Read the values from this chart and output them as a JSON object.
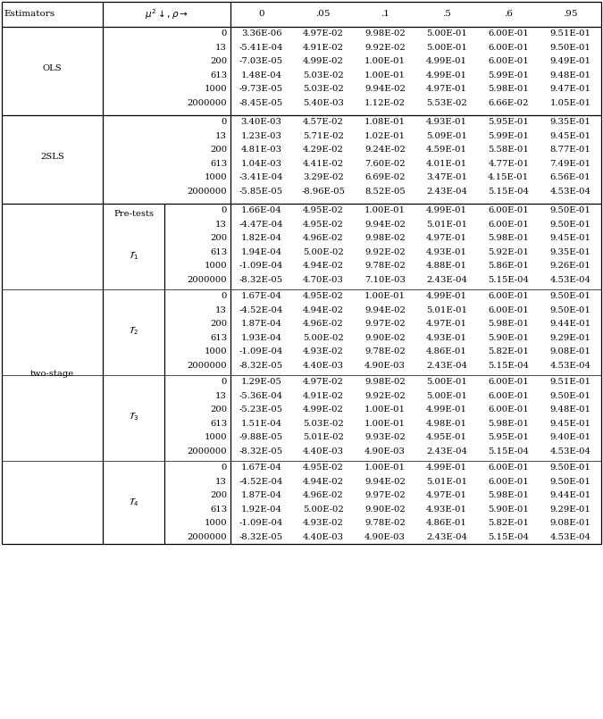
{
  "col_header": [
    "0",
    ".05",
    ".1",
    ".5",
    ".6",
    ".95"
  ],
  "mu2_values": [
    "0",
    "13",
    "200",
    "613",
    "1000",
    "2000000"
  ],
  "sections_order": [
    "OLS",
    "2SLS",
    "two_stage_T1",
    "two_stage_T2",
    "two_stage_T3",
    "two_stage_T4"
  ],
  "sections": {
    "OLS": {
      "main_label": "OLS",
      "sub_label": null,
      "rows": [
        [
          "3.36E-06",
          "4.97E-02",
          "9.98E-02",
          "5.00E-01",
          "6.00E-01",
          "9.51E-01"
        ],
        [
          "-5.41E-04",
          "4.91E-02",
          "9.92E-02",
          "5.00E-01",
          "6.00E-01",
          "9.50E-01"
        ],
        [
          "-7.03E-05",
          "4.99E-02",
          "1.00E-01",
          "4.99E-01",
          "6.00E-01",
          "9.49E-01"
        ],
        [
          "1.48E-04",
          "5.03E-02",
          "1.00E-01",
          "4.99E-01",
          "5.99E-01",
          "9.48E-01"
        ],
        [
          "-9.73E-05",
          "5.03E-02",
          "9.94E-02",
          "4.97E-01",
          "5.98E-01",
          "9.47E-01"
        ],
        [
          "-8.45E-05",
          "5.40E-03",
          "1.12E-02",
          "5.53E-02",
          "6.66E-02",
          "1.05E-01"
        ]
      ]
    },
    "2SLS": {
      "main_label": "2SLS",
      "sub_label": null,
      "rows": [
        [
          "3.40E-03",
          "4.57E-02",
          "1.08E-01",
          "4.93E-01",
          "5.95E-01",
          "9.35E-01"
        ],
        [
          "1.23E-03",
          "5.71E-02",
          "1.02E-01",
          "5.09E-01",
          "5.99E-01",
          "9.45E-01"
        ],
        [
          "4.81E-03",
          "4.29E-02",
          "9.24E-02",
          "4.59E-01",
          "5.58E-01",
          "8.77E-01"
        ],
        [
          "1.04E-03",
          "4.41E-02",
          "7.60E-02",
          "4.01E-01",
          "4.77E-01",
          "7.49E-01"
        ],
        [
          "-3.41E-04",
          "3.29E-02",
          "6.69E-02",
          "3.47E-01",
          "4.15E-01",
          "6.56E-01"
        ],
        [
          "-5.85E-05",
          "-8.96E-05",
          "8.52E-05",
          "2.43E-04",
          "5.15E-04",
          "4.53E-04"
        ]
      ]
    },
    "two_stage_T1": {
      "main_label": "two-stage",
      "sub_label": "$\\mathcal{T}_1$",
      "pre_tests": true,
      "rows": [
        [
          "1.66E-04",
          "4.95E-02",
          "1.00E-01",
          "4.99E-01",
          "6.00E-01",
          "9.50E-01"
        ],
        [
          "-4.47E-04",
          "4.95E-02",
          "9.94E-02",
          "5.01E-01",
          "6.00E-01",
          "9.50E-01"
        ],
        [
          "1.82E-04",
          "4.96E-02",
          "9.98E-02",
          "4.97E-01",
          "5.98E-01",
          "9.45E-01"
        ],
        [
          "1.94E-04",
          "5.00E-02",
          "9.92E-02",
          "4.93E-01",
          "5.92E-01",
          "9.35E-01"
        ],
        [
          "-1.09E-04",
          "4.94E-02",
          "9.78E-02",
          "4.88E-01",
          "5.86E-01",
          "9.26E-01"
        ],
        [
          "-8.32E-05",
          "4.70E-03",
          "7.10E-03",
          "2.43E-04",
          "5.15E-04",
          "4.53E-04"
        ]
      ]
    },
    "two_stage_T2": {
      "main_label": null,
      "sub_label": "$\\mathcal{T}_2$",
      "pre_tests": false,
      "rows": [
        [
          "1.67E-04",
          "4.95E-02",
          "1.00E-01",
          "4.99E-01",
          "6.00E-01",
          "9.50E-01"
        ],
        [
          "-4.52E-04",
          "4.94E-02",
          "9.94E-02",
          "5.01E-01",
          "6.00E-01",
          "9.50E-01"
        ],
        [
          "1.87E-04",
          "4.96E-02",
          "9.97E-02",
          "4.97E-01",
          "5.98E-01",
          "9.44E-01"
        ],
        [
          "1.93E-04",
          "5.00E-02",
          "9.90E-02",
          "4.93E-01",
          "5.90E-01",
          "9.29E-01"
        ],
        [
          "-1.09E-04",
          "4.93E-02",
          "9.78E-02",
          "4.86E-01",
          "5.82E-01",
          "9.08E-01"
        ],
        [
          "-8.32E-05",
          "4.40E-03",
          "4.90E-03",
          "2.43E-04",
          "5.15E-04",
          "4.53E-04"
        ]
      ]
    },
    "two_stage_T3": {
      "main_label": null,
      "sub_label": "$\\mathcal{T}_3$",
      "pre_tests": false,
      "rows": [
        [
          "1.29E-05",
          "4.97E-02",
          "9.98E-02",
          "5.00E-01",
          "6.00E-01",
          "9.51E-01"
        ],
        [
          "-5.36E-04",
          "4.91E-02",
          "9.92E-02",
          "5.00E-01",
          "6.00E-01",
          "9.50E-01"
        ],
        [
          "-5.23E-05",
          "4.99E-02",
          "1.00E-01",
          "4.99E-01",
          "6.00E-01",
          "9.48E-01"
        ],
        [
          "1.51E-04",
          "5.03E-02",
          "1.00E-01",
          "4.98E-01",
          "5.98E-01",
          "9.45E-01"
        ],
        [
          "-9.88E-05",
          "5.01E-02",
          "9.93E-02",
          "4.95E-01",
          "5.95E-01",
          "9.40E-01"
        ],
        [
          "-8.32E-05",
          "4.40E-03",
          "4.90E-03",
          "2.43E-04",
          "5.15E-04",
          "4.53E-04"
        ]
      ]
    },
    "two_stage_T4": {
      "main_label": null,
      "sub_label": "$\\mathcal{T}_4$",
      "pre_tests": false,
      "rows": [
        [
          "1.67E-04",
          "4.95E-02",
          "1.00E-01",
          "4.99E-01",
          "6.00E-01",
          "9.50E-01"
        ],
        [
          "-4.52E-04",
          "4.94E-02",
          "9.94E-02",
          "5.01E-01",
          "6.00E-01",
          "9.50E-01"
        ],
        [
          "1.87E-04",
          "4.96E-02",
          "9.97E-02",
          "4.97E-01",
          "5.98E-01",
          "9.44E-01"
        ],
        [
          "1.92E-04",
          "5.00E-02",
          "9.90E-02",
          "4.93E-01",
          "5.90E-01",
          "9.29E-01"
        ],
        [
          "-1.09E-04",
          "4.93E-02",
          "9.78E-02",
          "4.86E-01",
          "5.82E-01",
          "9.08E-01"
        ],
        [
          "-8.32E-05",
          "4.40E-03",
          "4.90E-03",
          "2.43E-04",
          "5.15E-04",
          "4.53E-04"
        ]
      ]
    }
  },
  "bg_color": "#ffffff",
  "font_size": 7.2,
  "header_font_size": 7.5
}
